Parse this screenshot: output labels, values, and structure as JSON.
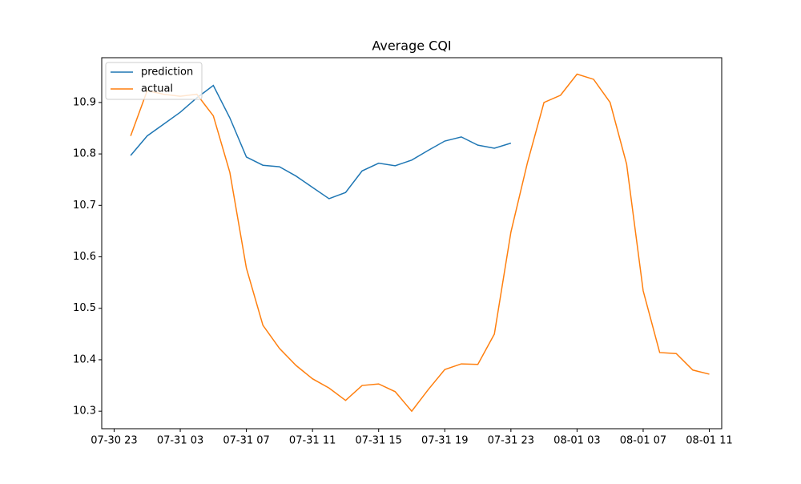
{
  "chart_data": {
    "type": "line",
    "title": "Average CQI",
    "x": [
      "07-31 00",
      "07-31 01",
      "07-31 02",
      "07-31 03",
      "07-31 04",
      "07-31 05",
      "07-31 06",
      "07-31 07",
      "07-31 08",
      "07-31 09",
      "07-31 10",
      "07-31 11",
      "07-31 12",
      "07-31 13",
      "07-31 14",
      "07-31 15",
      "07-31 16",
      "07-31 17",
      "07-31 18",
      "07-31 19",
      "07-31 20",
      "07-31 21",
      "07-31 22",
      "07-31 23",
      "08-01 00",
      "08-01 01",
      "08-01 02",
      "08-01 03",
      "08-01 04",
      "08-01 05",
      "08-01 06",
      "08-01 07",
      "08-01 08",
      "08-01 09",
      "08-01 10",
      "08-01 11"
    ],
    "series": [
      {
        "name": "prediction",
        "color": "#1f77b4",
        "values": [
          10.797,
          10.835,
          10.858,
          10.881,
          10.909,
          10.933,
          10.87,
          10.794,
          10.778,
          10.775,
          10.757,
          10.735,
          10.713,
          10.725,
          10.767,
          10.782,
          10.777,
          10.788,
          10.807,
          10.825,
          10.833,
          10.817,
          10.811,
          10.821,
          null,
          null,
          null,
          null,
          null,
          null,
          null,
          null,
          null,
          null,
          null,
          null
        ]
      },
      {
        "name": "actual",
        "color": "#ff7f0e",
        "values": [
          10.835,
          10.923,
          10.916,
          10.912,
          10.916,
          10.874,
          10.764,
          10.578,
          10.467,
          10.422,
          10.389,
          10.363,
          10.345,
          10.321,
          10.35,
          10.353,
          10.338,
          10.3,
          10.342,
          10.381,
          10.392,
          10.391,
          10.45,
          10.648,
          10.783,
          10.9,
          10.914,
          10.955,
          10.945,
          10.9,
          10.78,
          10.534,
          10.414,
          10.412,
          10.38,
          10.372
        ]
      }
    ],
    "xlim": [
      "07-30 22:15",
      "08-01 11:45"
    ],
    "xticks": [
      "07-30 23",
      "07-31 03",
      "07-31 07",
      "07-31 11",
      "07-31 15",
      "07-31 19",
      "07-31 23",
      "08-01 03",
      "08-01 07",
      "08-01 11"
    ],
    "ylim": [
      10.266,
      10.987
    ],
    "yticks": [
      10.3,
      10.4,
      10.5,
      10.6,
      10.7,
      10.8,
      10.9
    ],
    "legend": "upper left"
  }
}
